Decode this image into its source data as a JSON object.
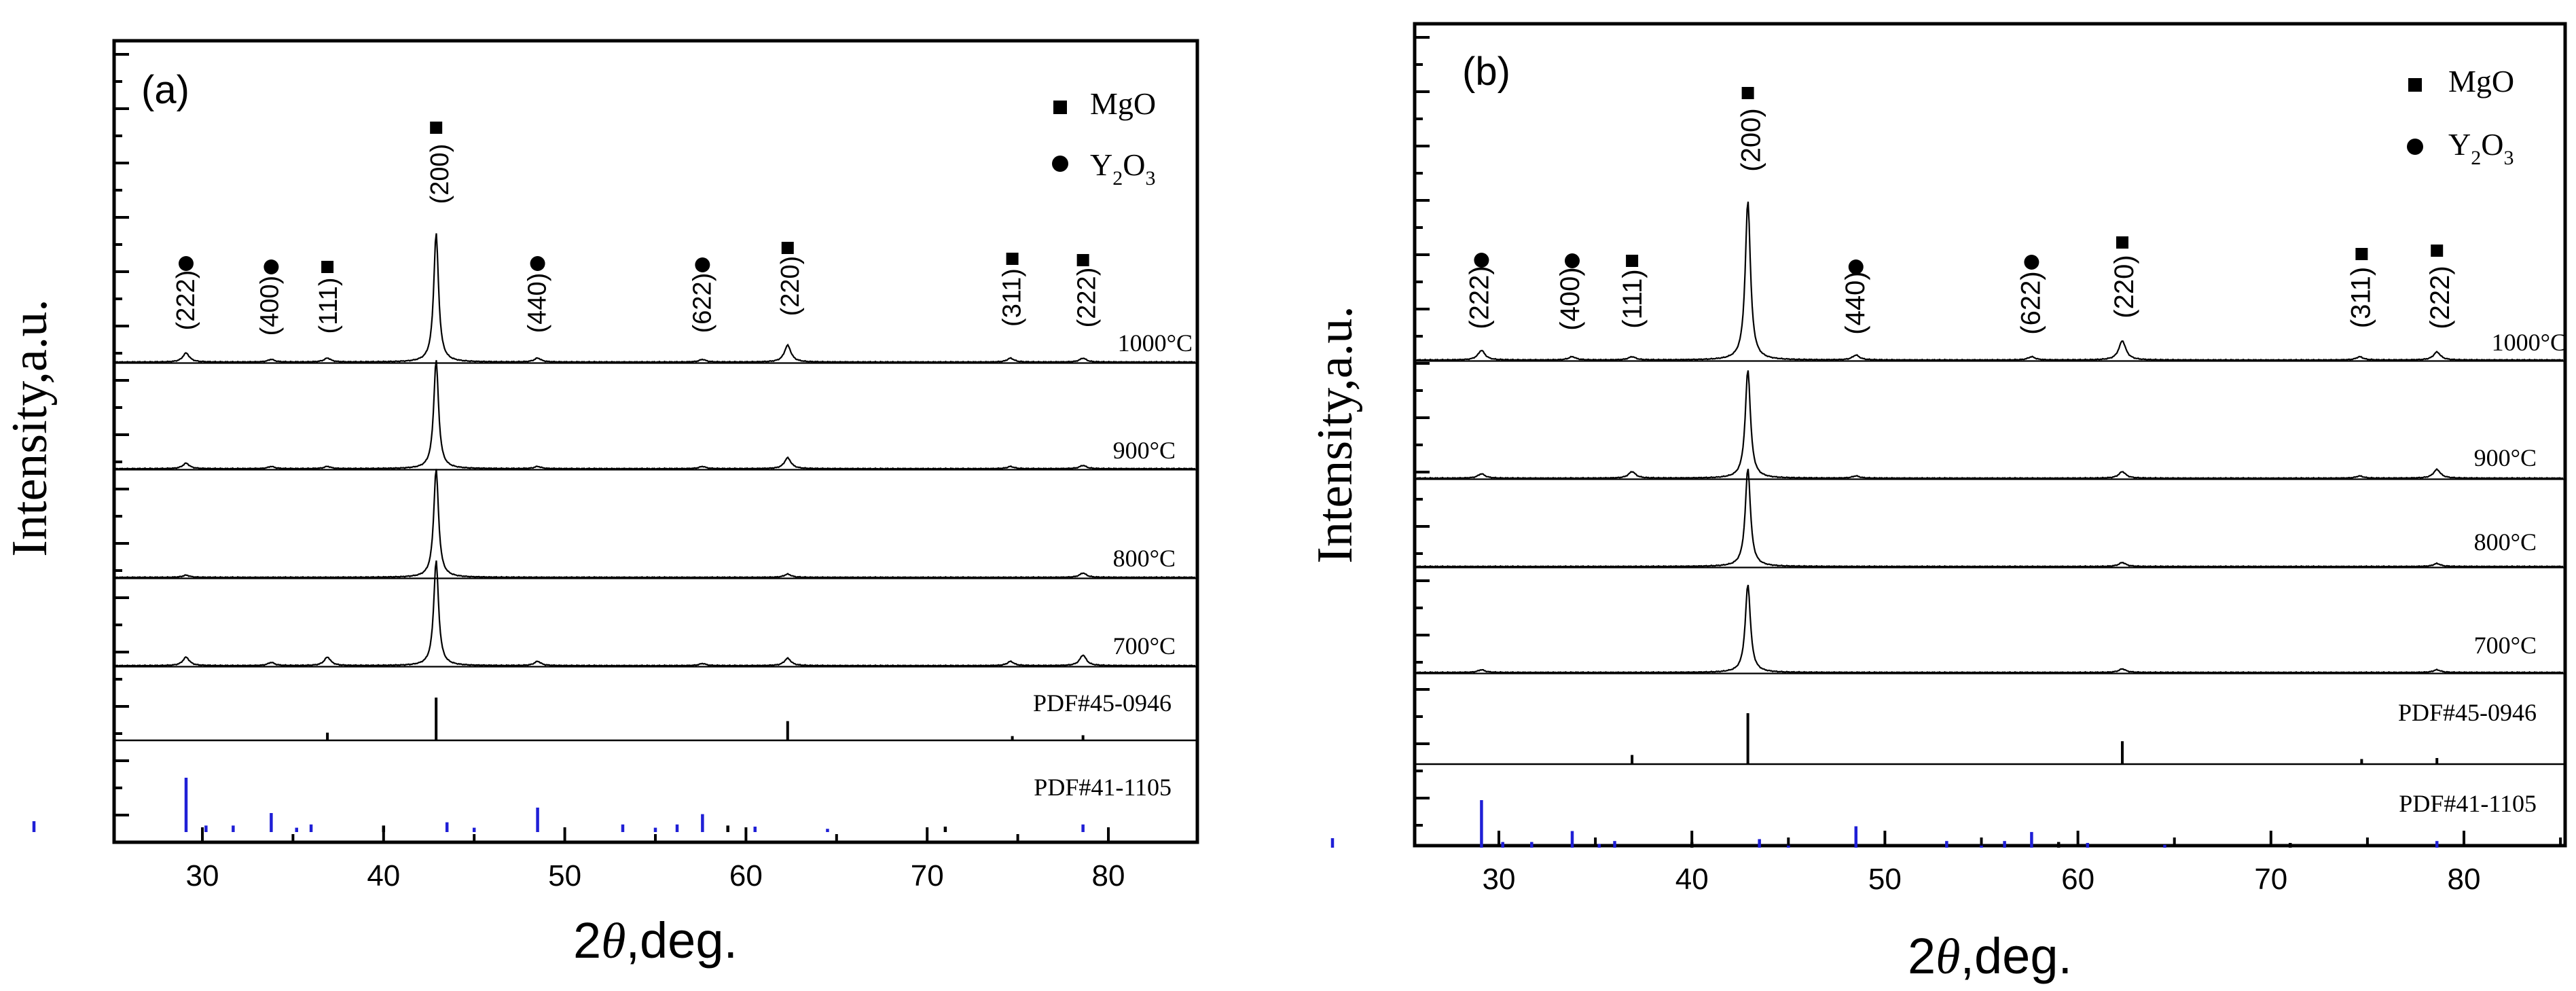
{
  "chart_data": [
    {
      "type": "line",
      "panel": "(a)",
      "xlabel": "2θ,deg.",
      "xlabel_prefix": "2",
      "xlabel_theta": "θ",
      "xlabel_suffix": ",deg.",
      "ylabel": "Intensity,a.u.",
      "xlim": [
        25,
        85
      ],
      "xticks": [
        30,
        40,
        50,
        60,
        70,
        80
      ],
      "xtick_labels": [
        "30",
        "40",
        "50",
        "60",
        "70",
        "80"
      ],
      "legend": [
        {
          "marker": "square",
          "label": "MgO"
        },
        {
          "marker": "circle",
          "label": "Y2O3",
          "label_main": "Y",
          "label_sub1": "2",
          "label_mid": "O",
          "label_sub2": "3"
        }
      ],
      "series": [
        {
          "name": "1000°C",
          "peaks": [
            {
              "x": 29.1,
              "h": 0.07
            },
            {
              "x": 33.8,
              "h": 0.02
            },
            {
              "x": 36.9,
              "h": 0.03
            },
            {
              "x": 42.9,
              "h": 1.0
            },
            {
              "x": 48.5,
              "h": 0.03
            },
            {
              "x": 57.6,
              "h": 0.02
            },
            {
              "x": 62.3,
              "h": 0.13
            },
            {
              "x": 74.6,
              "h": 0.03
            },
            {
              "x": 78.6,
              "h": 0.03
            }
          ]
        },
        {
          "name": "900°C",
          "peaks": [
            {
              "x": 29.1,
              "h": 0.05
            },
            {
              "x": 33.8,
              "h": 0.02
            },
            {
              "x": 36.9,
              "h": 0.02
            },
            {
              "x": 42.9,
              "h": 1.0
            },
            {
              "x": 48.5,
              "h": 0.02
            },
            {
              "x": 57.6,
              "h": 0.02
            },
            {
              "x": 62.3,
              "h": 0.1
            },
            {
              "x": 74.6,
              "h": 0.02
            },
            {
              "x": 78.6,
              "h": 0.03
            }
          ]
        },
        {
          "name": "800°C",
          "peaks": [
            {
              "x": 29.1,
              "h": 0.02
            },
            {
              "x": 42.9,
              "h": 1.0
            },
            {
              "x": 62.3,
              "h": 0.03
            },
            {
              "x": 78.6,
              "h": 0.04
            }
          ]
        },
        {
          "name": "700°C",
          "peaks": [
            {
              "x": 29.1,
              "h": 0.08
            },
            {
              "x": 33.8,
              "h": 0.03
            },
            {
              "x": 36.9,
              "h": 0.08
            },
            {
              "x": 42.9,
              "h": 1.0
            },
            {
              "x": 48.5,
              "h": 0.04
            },
            {
              "x": 57.6,
              "h": 0.02
            },
            {
              "x": 62.3,
              "h": 0.07
            },
            {
              "x": 74.6,
              "h": 0.04
            },
            {
              "x": 78.6,
              "h": 0.1
            }
          ]
        }
      ],
      "reference_mgo": {
        "name": "PDF#45-0946",
        "lines": [
          {
            "x": 36.9,
            "h": 0.18
          },
          {
            "x": 42.9,
            "h": 1.0
          },
          {
            "x": 62.3,
            "h": 0.45
          },
          {
            "x": 74.7,
            "h": 0.1
          },
          {
            "x": 78.6,
            "h": 0.12
          }
        ]
      },
      "reference_y2o3": {
        "name": "PDF#41-1105",
        "lines": [
          {
            "x": 20.1,
            "h": 0.2
          },
          {
            "x": 29.1,
            "h": 1.0
          },
          {
            "x": 30.2,
            "h": 0.12
          },
          {
            "x": 31.7,
            "h": 0.12
          },
          {
            "x": 33.8,
            "h": 0.35
          },
          {
            "x": 35.2,
            "h": 0.08
          },
          {
            "x": 36.0,
            "h": 0.14
          },
          {
            "x": 40.0,
            "h": 0.12
          },
          {
            "x": 43.5,
            "h": 0.18
          },
          {
            "x": 45.0,
            "h": 0.08
          },
          {
            "x": 48.5,
            "h": 0.45
          },
          {
            "x": 53.2,
            "h": 0.14
          },
          {
            "x": 55.0,
            "h": 0.08
          },
          {
            "x": 56.2,
            "h": 0.14
          },
          {
            "x": 57.6,
            "h": 0.33
          },
          {
            "x": 59.0,
            "h": 0.12
          },
          {
            "x": 60.5,
            "h": 0.1
          },
          {
            "x": 64.5,
            "h": 0.06
          },
          {
            "x": 71.0,
            "h": 0.1
          },
          {
            "x": 78.6,
            "h": 0.14
          }
        ]
      },
      "annotations": [
        {
          "label": "(222)",
          "marker": "circle",
          "x": 29.1
        },
        {
          "label": "(400)",
          "marker": "circle",
          "x": 33.8
        },
        {
          "label": "(111)",
          "marker": "square",
          "x": 36.9
        },
        {
          "label": "(200)",
          "marker": "square",
          "x": 42.9
        },
        {
          "label": "(440)",
          "marker": "circle",
          "x": 48.5
        },
        {
          "label": "(622)",
          "marker": "circle",
          "x": 57.6
        },
        {
          "label": "(220)",
          "marker": "square",
          "x": 62.3
        },
        {
          "label": "(311)",
          "marker": "square",
          "x": 74.7
        },
        {
          "label": "(222)",
          "marker": "square",
          "x": 78.6
        }
      ]
    },
    {
      "type": "line",
      "panel": "(b)",
      "xlabel": "2θ,deg.",
      "xlabel_prefix": "2",
      "xlabel_theta": "θ",
      "xlabel_suffix": ",deg.",
      "ylabel": "Intensity,a.u.",
      "xlim": [
        25,
        85
      ],
      "xticks": [
        30,
        40,
        50,
        60,
        70,
        80
      ],
      "xtick_labels": [
        "30",
        "40",
        "50",
        "60",
        "70",
        "80"
      ],
      "legend": [
        {
          "marker": "square",
          "label": "MgO"
        },
        {
          "marker": "circle",
          "label": "Y2O3",
          "label_main": "Y",
          "label_sub1": "2",
          "label_mid": "O",
          "label_sub2": "3"
        }
      ],
      "series": [
        {
          "name": "1000°C",
          "peaks": [
            {
              "x": 29.1,
              "h": 0.06
            },
            {
              "x": 33.8,
              "h": 0.02
            },
            {
              "x": 36.9,
              "h": 0.02
            },
            {
              "x": 42.9,
              "h": 1.0
            },
            {
              "x": 48.5,
              "h": 0.03
            },
            {
              "x": 57.6,
              "h": 0.02
            },
            {
              "x": 62.3,
              "h": 0.12
            },
            {
              "x": 74.6,
              "h": 0.02
            },
            {
              "x": 78.6,
              "h": 0.05
            }
          ]
        },
        {
          "name": "900°C",
          "peaks": [
            {
              "x": 29.1,
              "h": 0.04
            },
            {
              "x": 36.9,
              "h": 0.06
            },
            {
              "x": 42.9,
              "h": 1.0
            },
            {
              "x": 48.5,
              "h": 0.02
            },
            {
              "x": 62.3,
              "h": 0.06
            },
            {
              "x": 74.6,
              "h": 0.02
            },
            {
              "x": 78.6,
              "h": 0.08
            }
          ]
        },
        {
          "name": "800°C",
          "peaks": [
            {
              "x": 42.9,
              "h": 1.0
            },
            {
              "x": 62.3,
              "h": 0.04
            },
            {
              "x": 78.6,
              "h": 0.03
            }
          ]
        },
        {
          "name": "700°C",
          "peaks": [
            {
              "x": 29.1,
              "h": 0.03
            },
            {
              "x": 42.9,
              "h": 1.0
            },
            {
              "x": 62.3,
              "h": 0.04
            },
            {
              "x": 78.6,
              "h": 0.03
            }
          ]
        }
      ],
      "reference_mgo": {
        "name": "PDF#45-0946",
        "lines": [
          {
            "x": 36.9,
            "h": 0.18
          },
          {
            "x": 42.9,
            "h": 1.0
          },
          {
            "x": 62.3,
            "h": 0.45
          },
          {
            "x": 74.7,
            "h": 0.1
          },
          {
            "x": 78.6,
            "h": 0.12
          }
        ]
      },
      "reference_y2o3": {
        "name": "PDF#41-1105",
        "lines": [
          {
            "x": 20.1,
            "h": 0.2
          },
          {
            "x": 29.1,
            "h": 1.0
          },
          {
            "x": 30.2,
            "h": 0.12
          },
          {
            "x": 31.7,
            "h": 0.12
          },
          {
            "x": 33.8,
            "h": 0.35
          },
          {
            "x": 35.2,
            "h": 0.08
          },
          {
            "x": 36.0,
            "h": 0.14
          },
          {
            "x": 40.0,
            "h": 0.12
          },
          {
            "x": 43.5,
            "h": 0.18
          },
          {
            "x": 45.0,
            "h": 0.08
          },
          {
            "x": 48.5,
            "h": 0.45
          },
          {
            "x": 53.2,
            "h": 0.14
          },
          {
            "x": 55.0,
            "h": 0.08
          },
          {
            "x": 56.2,
            "h": 0.14
          },
          {
            "x": 57.6,
            "h": 0.33
          },
          {
            "x": 59.0,
            "h": 0.12
          },
          {
            "x": 60.5,
            "h": 0.1
          },
          {
            "x": 64.5,
            "h": 0.06
          },
          {
            "x": 71.0,
            "h": 0.1
          },
          {
            "x": 78.6,
            "h": 0.14
          }
        ]
      },
      "annotations": [
        {
          "label": "(222)",
          "marker": "circle",
          "x": 29.1
        },
        {
          "label": "(400)",
          "marker": "circle",
          "x": 33.8
        },
        {
          "label": "(111)",
          "marker": "square",
          "x": 36.9
        },
        {
          "label": "(200)",
          "marker": "square",
          "x": 42.9
        },
        {
          "label": "(440)",
          "marker": "circle",
          "x": 48.5
        },
        {
          "label": "(622)",
          "marker": "circle",
          "x": 57.6
        },
        {
          "label": "(220)",
          "marker": "square",
          "x": 62.3
        },
        {
          "label": "(311)",
          "marker": "square",
          "x": 74.7
        },
        {
          "label": "(222)",
          "marker": "square",
          "x": 78.6
        }
      ]
    }
  ],
  "colors": {
    "trace": "#000000",
    "reference_mgo": "#000000",
    "reference_y2o3": "#1f1fd6",
    "axis": "#000000"
  }
}
